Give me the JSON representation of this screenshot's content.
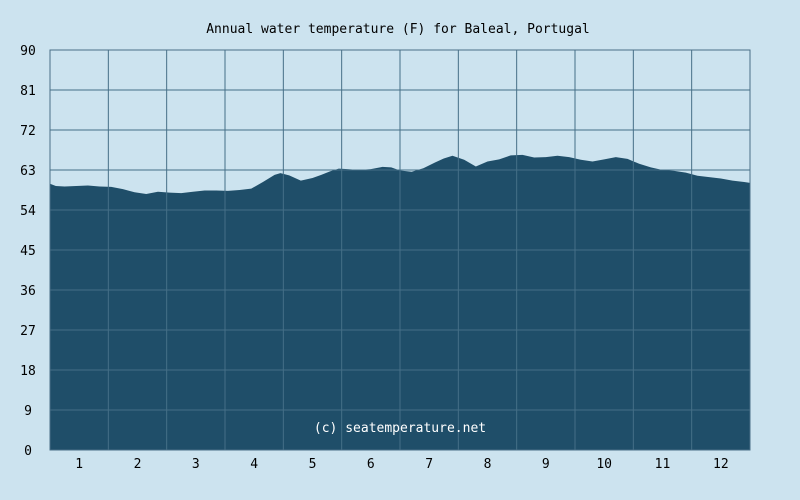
{
  "chart_data": {
    "type": "area",
    "title": "Annual water temperature (F) for Baleal, Portugal",
    "xlabel": "",
    "ylabel": "",
    "watermark": "(c) seatemperature.net",
    "ylim": [
      0,
      90
    ],
    "xlim": [
      0.5,
      12.5
    ],
    "yticks": [
      0,
      9,
      18,
      27,
      36,
      45,
      54,
      63,
      72,
      81,
      90
    ],
    "xtick_labels": [
      "1",
      "2",
      "3",
      "4",
      "5",
      "6",
      "7",
      "8",
      "9",
      "10",
      "11",
      "12"
    ],
    "grid": true,
    "colors": {
      "background": "#cce3ef",
      "fill": "#1f4e69",
      "grid": "#456f87",
      "axis": "#4a6f87"
    },
    "series": [
      {
        "x": [
          0.5,
          0.6,
          0.75,
          0.95,
          1.15,
          1.35,
          1.55,
          1.75,
          1.95,
          2.15,
          2.35,
          2.55,
          2.75,
          2.95,
          3.15,
          3.35,
          3.55,
          3.75,
          3.95,
          4.15,
          4.35,
          4.45,
          4.6,
          4.8,
          5.0,
          5.15,
          5.3,
          5.45,
          5.6,
          5.8,
          6.0,
          6.2,
          6.35,
          6.5,
          6.7,
          6.9,
          7.1,
          7.25,
          7.4,
          7.6,
          7.8,
          8.0,
          8.2,
          8.4,
          8.6,
          8.8,
          9.0,
          9.2,
          9.4,
          9.6,
          9.8,
          10.0,
          10.2,
          10.4,
          10.6,
          10.8,
          11.0,
          11.2,
          11.4,
          11.6,
          11.8,
          12.0,
          12.2,
          12.4,
          12.5
        ],
        "values": [
          59.9,
          59.4,
          59.3,
          59.4,
          59.5,
          59.3,
          59.2,
          58.7,
          58.0,
          57.6,
          58.1,
          57.9,
          57.8,
          58.1,
          58.4,
          58.4,
          58.3,
          58.5,
          58.8,
          60.3,
          61.9,
          62.3,
          61.8,
          60.6,
          61.2,
          61.9,
          62.7,
          63.3,
          63.2,
          63.0,
          63.2,
          63.7,
          63.6,
          62.9,
          62.6,
          63.4,
          64.7,
          65.6,
          66.2,
          65.3,
          63.8,
          64.9,
          65.4,
          66.3,
          66.4,
          65.8,
          65.9,
          66.2,
          65.9,
          65.3,
          64.9,
          65.4,
          65.9,
          65.5,
          64.4,
          63.6,
          63.0,
          62.8,
          62.4,
          61.7,
          61.4,
          61.1,
          60.6,
          60.3,
          60.1
        ]
      }
    ]
  }
}
